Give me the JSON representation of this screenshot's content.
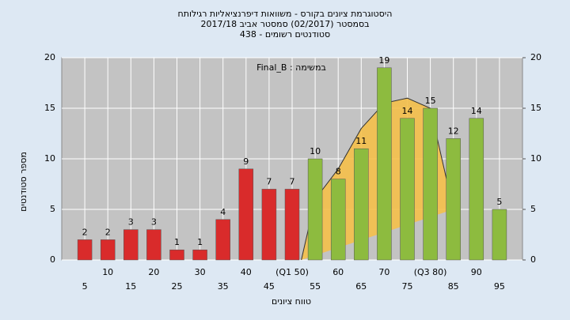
{
  "chart_data": {
    "type": "bar",
    "title": [
      "היסטוגרמת ציונים בקורס - משוואות דיפרנציאליות רגילותח",
      "בסמסטר  (02/2017)  סמסטר אביב 2017/18",
      "סטודנטים רשומים - 438"
    ],
    "annotation": "במשימה : Final_B",
    "y_label": "מספר סטודנטים",
    "x_label": "טווח ציונים",
    "categories": [
      "5",
      "10",
      "15",
      "20",
      "25",
      "30",
      "35",
      "40",
      "45",
      "(Q1 50)",
      "55",
      "60",
      "65",
      "70",
      "75",
      "(Q3 80)",
      "85",
      "90",
      "95"
    ],
    "values": [
      2,
      2,
      3,
      3,
      1,
      1,
      4,
      9,
      7,
      7,
      10,
      8,
      11,
      19,
      14,
      15,
      12,
      14,
      5
    ],
    "bar_colors": [
      "#d92b2b",
      "#d92b2b",
      "#d92b2b",
      "#d92b2b",
      "#d92b2b",
      "#d92b2b",
      "#d92b2b",
      "#d92b2b",
      "#d92b2b",
      "#d92b2b",
      "#8dbb3f",
      "#8dbb3f",
      "#8dbb3f",
      "#8dbb3f",
      "#8dbb3f",
      "#8dbb3f",
      "#8dbb3f",
      "#8dbb3f",
      "#8dbb3f"
    ],
    "overlay": {
      "x": [
        52,
        55,
        60,
        65,
        70,
        75,
        80,
        85
      ],
      "values": [
        0,
        6,
        9,
        13,
        15.5,
        16,
        15,
        5
      ],
      "color": "#f5c04a"
    },
    "ylim": [
      0,
      20
    ],
    "yticks": [
      0,
      5,
      10,
      15,
      20
    ],
    "y2lim": [
      0,
      20
    ],
    "y2ticks": [
      0,
      5,
      10,
      15,
      20
    ],
    "grid": true
  }
}
